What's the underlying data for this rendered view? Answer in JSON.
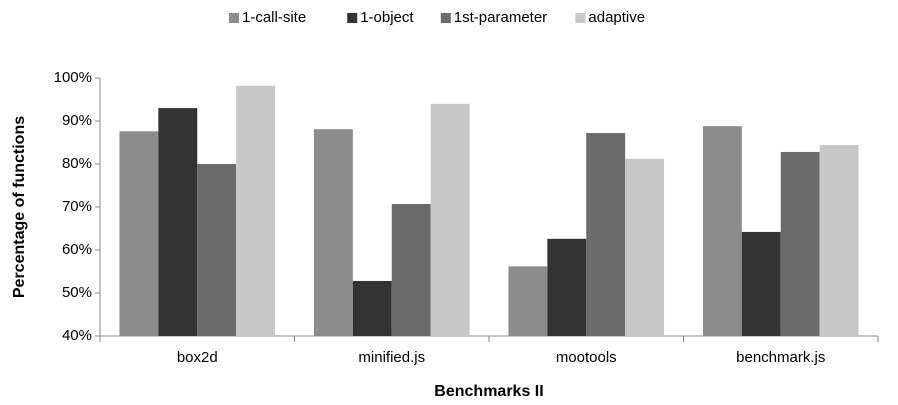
{
  "chart_data": {
    "type": "bar",
    "categories": [
      "box2d",
      "minified.js",
      "mootools",
      "benchmark.js"
    ],
    "series": [
      {
        "name": "1-call-site",
        "color": "#8c8c8c",
        "values": [
          87.6,
          88.1,
          56.2,
          88.8
        ]
      },
      {
        "name": "1-object",
        "color": "#333333",
        "values": [
          93,
          52.8,
          62.6,
          64.2
        ]
      },
      {
        "name": "1st-parameter",
        "color": "#6b6b6b",
        "values": [
          80,
          70.7,
          87.2,
          82.8
        ]
      },
      {
        "name": "adaptive",
        "color": "#c8c8c8",
        "values": [
          98.2,
          94,
          81.2,
          84.4
        ]
      }
    ],
    "xlabel": "Benchmarks II",
    "ylabel": "Percentage of functions",
    "ylim": [
      40,
      100
    ],
    "yticks": [
      {
        "value": 40,
        "label": "40%"
      },
      {
        "value": 50,
        "label": "50%"
      },
      {
        "value": 60,
        "label": "60%"
      },
      {
        "value": 70,
        "label": "70%"
      },
      {
        "value": 80,
        "label": "80%"
      },
      {
        "value": 90,
        "label": "90%"
      },
      {
        "value": 100,
        "label": "100%"
      }
    ],
    "grid": false,
    "legend": "top"
  }
}
